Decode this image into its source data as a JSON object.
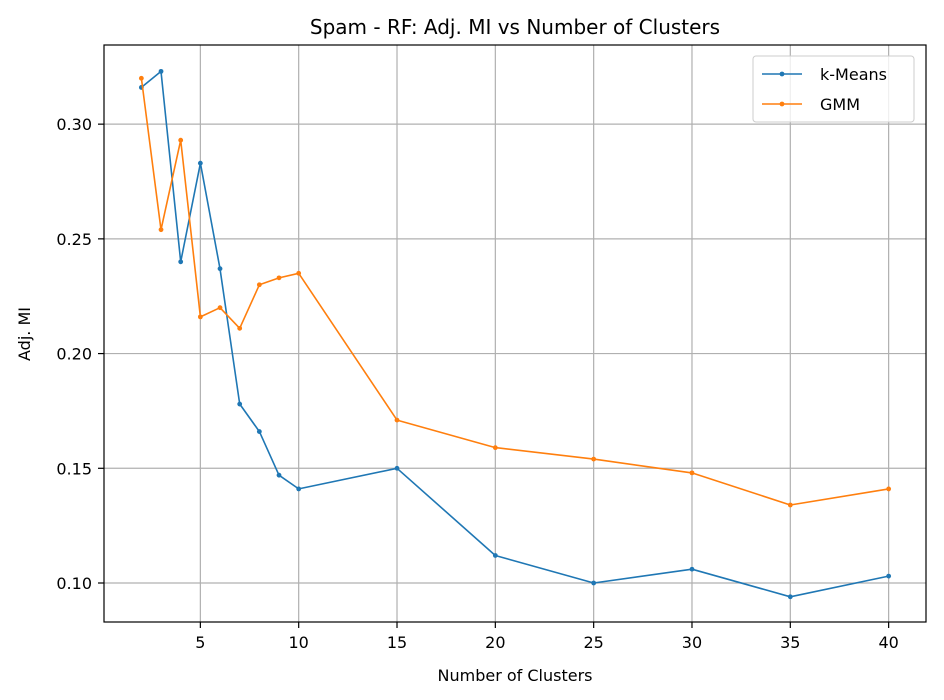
{
  "chart_data": {
    "type": "line",
    "title": "Spam - RF: Adj. MI vs Number of Clusters",
    "xlabel": "Number of Clusters",
    "ylabel": "Adj. MI",
    "xlim": [
      0.1,
      41.9
    ],
    "ylim": [
      0.083,
      0.3345
    ],
    "xticks": [
      5,
      10,
      15,
      20,
      25,
      30,
      35,
      40
    ],
    "yticks": [
      0.1,
      0.15,
      0.2,
      0.25,
      0.3
    ],
    "ytick_labels": [
      "0.10",
      "0.15",
      "0.20",
      "0.25",
      "0.30"
    ],
    "xtick_labels": [
      "5",
      "10",
      "15",
      "20",
      "25",
      "30",
      "35",
      "40"
    ],
    "grid": true,
    "legend": "top-right",
    "x": [
      2,
      3,
      4,
      5,
      6,
      7,
      8,
      9,
      10,
      15,
      20,
      25,
      30,
      35,
      40
    ],
    "series": [
      {
        "name": "k-Means",
        "color": "#1f77b4",
        "values": [
          0.316,
          0.323,
          0.24,
          0.283,
          0.237,
          0.178,
          0.166,
          0.147,
          0.141,
          0.15,
          0.112,
          0.1,
          0.106,
          0.094,
          0.103
        ]
      },
      {
        "name": "GMM",
        "color": "#ff7f0e",
        "values": [
          0.32,
          0.254,
          0.293,
          0.216,
          0.22,
          0.211,
          0.23,
          0.233,
          0.235,
          0.171,
          0.159,
          0.154,
          0.148,
          0.134,
          0.141
        ]
      }
    ]
  }
}
